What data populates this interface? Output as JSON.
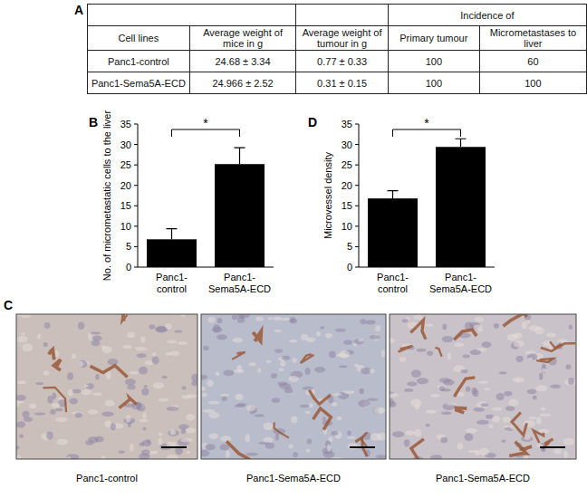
{
  "panel_labels": [
    "A",
    "B",
    "C",
    "D"
  ],
  "table": {
    "group_header": "Incidence of",
    "columns": [
      "Cell lines",
      "Average weight of mice in g",
      "Average weight of tumour in g",
      "Primary tumour",
      "Micrometastases to liver"
    ],
    "rows": [
      [
        "Panc1-control",
        "24.68 ± 3.34",
        "0.77 ± 0.33",
        "100",
        "60"
      ],
      [
        "Panc1-Sema5A-ECD",
        "24.966 ± 2.52",
        "0.31 ± 0.15",
        "100",
        "100"
      ]
    ]
  },
  "chart_data": [
    {
      "type": "bar",
      "y_label": "No. of micrometastatic cells to the liver",
      "categories": [
        "Panc1-control",
        "Panc1-Sema5A-ECD"
      ],
      "values": [
        6.8,
        25.2
      ],
      "errors": [
        2.6,
        4.0
      ],
      "color": "#000000",
      "ylim": [
        0,
        35
      ],
      "yticks": [
        0,
        5,
        10,
        15,
        20,
        25,
        30,
        35
      ],
      "annotation": "*"
    },
    {
      "type": "bar",
      "y_label": "Microvessel density",
      "categories": [
        "Panc1-control",
        "Panc1-Sema5A-ECD"
      ],
      "values": [
        16.8,
        29.4
      ],
      "errors": [
        1.9,
        2.0
      ],
      "color": "#000000",
      "ylim": [
        0,
        35
      ],
      "yticks": [
        0,
        5,
        10,
        15,
        20,
        25,
        30,
        35
      ],
      "annotation": "*"
    }
  ],
  "images": {
    "captions": [
      "Panc1-control",
      "Panc1-Sema5A-ECD",
      "Panc1-Sema5A-ECD"
    ]
  }
}
